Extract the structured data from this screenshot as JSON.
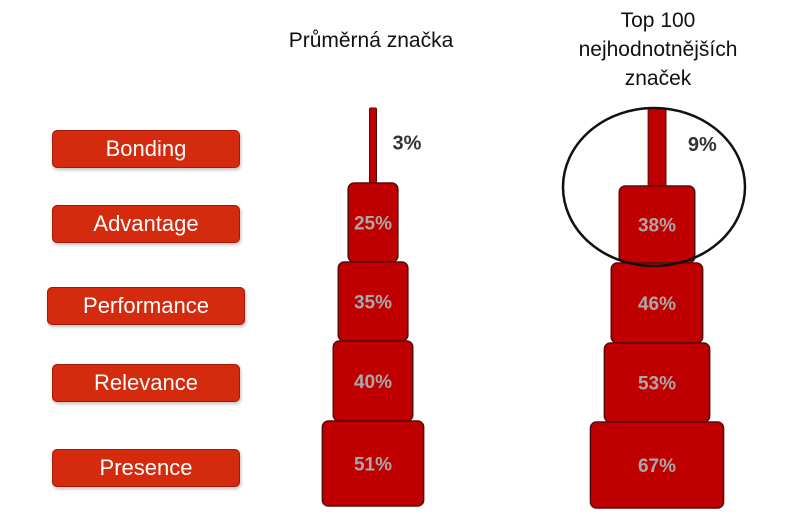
{
  "chart_data": {
    "type": "bar",
    "categories": [
      "Bonding",
      "Advantage",
      "Performance",
      "Relevance",
      "Presence"
    ],
    "series": [
      {
        "name": "Průměrná značka",
        "values": [
          3,
          25,
          35,
          40,
          51
        ]
      },
      {
        "name": "Top 100 nejhodnotnějších značek",
        "values": [
          9,
          38,
          46,
          53,
          67
        ]
      }
    ],
    "value_labels": [
      [
        "3%",
        "25%",
        "35%",
        "40%",
        "51%"
      ],
      [
        "9%",
        "38%",
        "46%",
        "53%",
        "67%"
      ]
    ],
    "column_titles": [
      [
        "Průměrná značka"
      ],
      [
        "Top 100",
        "nejhodnotnějších",
        "značek"
      ]
    ],
    "layout": "stacked-pyramid",
    "highlight": "Top 100 Bonding/Advantage circled",
    "colors": {
      "bar": "#c00000",
      "bar_edge": "#5a0a0a",
      "label_box": "#d42a0e",
      "value_text_inside": "#a8a8a8",
      "value_text_outside": "#333333"
    }
  }
}
